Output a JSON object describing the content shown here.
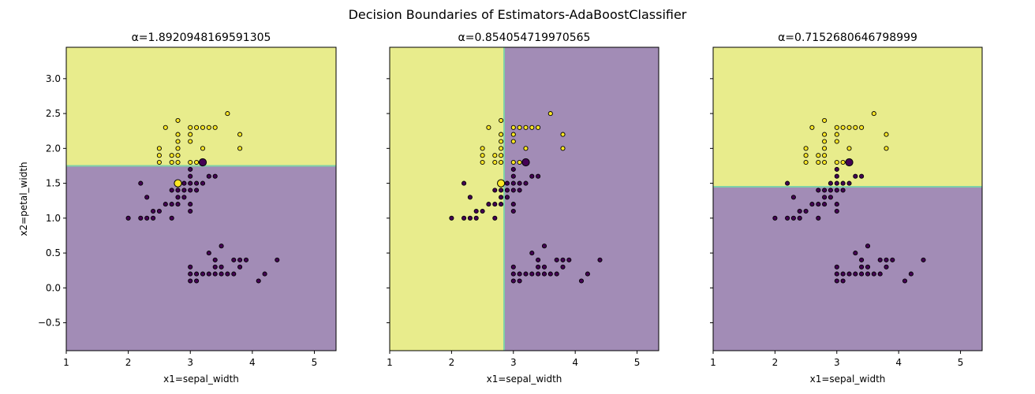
{
  "suptitle": "Decision Boundaries of Estimators-AdaBoostClassifier",
  "colors": {
    "class0_fill": "#a28cb6",
    "class1_fill": "#e8ec8c",
    "boundary": "#7ed0a8",
    "class0_point": "#440154",
    "class1_point": "#fde725",
    "point_edge": "#000000"
  },
  "chart_data": [
    {
      "type": "scatter",
      "title": "α=1.8920948169591305",
      "xlabel": "x1=sepal_width",
      "ylabel": "x2=petal_width",
      "xlim": [
        1.0,
        5.35
      ],
      "ylim": [
        -0.9,
        3.45
      ],
      "xticks": [
        1,
        2,
        3,
        4,
        5
      ],
      "yticks": [
        -0.5,
        0.0,
        0.5,
        1.0,
        1.5,
        2.0,
        2.5,
        3.0
      ],
      "ytick_labels": [
        "−0.5",
        "0.0",
        "0.5",
        "1.0",
        "1.5",
        "2.0",
        "2.5",
        "3.0"
      ],
      "show_ytick_labels": true,
      "split": {
        "axis": "y",
        "threshold": 1.75,
        "below": 0,
        "above": 1
      },
      "highlight": [
        [
          2.8,
          1.5,
          1
        ],
        [
          3.2,
          1.8,
          0
        ]
      ]
    },
    {
      "type": "scatter",
      "title": "α=0.854054719970565",
      "xlabel": "x1=sepal_width",
      "ylabel": "",
      "xlim": [
        1.0,
        5.35
      ],
      "ylim": [
        -0.9,
        3.45
      ],
      "xticks": [
        1,
        2,
        3,
        4,
        5
      ],
      "yticks": [
        -0.5,
        0.0,
        0.5,
        1.0,
        1.5,
        2.0,
        2.5,
        3.0
      ],
      "ytick_labels": [
        "−0.5",
        "0.0",
        "0.5",
        "1.0",
        "1.5",
        "2.0",
        "2.5",
        "3.0"
      ],
      "show_ytick_labels": false,
      "split": {
        "axis": "x",
        "threshold": 2.85,
        "below": 1,
        "above": 0
      },
      "highlight": [
        [
          2.8,
          1.5,
          1
        ],
        [
          3.2,
          1.8,
          0
        ]
      ]
    },
    {
      "type": "scatter",
      "title": "α=0.7152680646798999",
      "xlabel": "x1=sepal_width",
      "ylabel": "",
      "xlim": [
        1.0,
        5.35
      ],
      "ylim": [
        -0.9,
        3.45
      ],
      "xticks": [
        1,
        2,
        3,
        4,
        5
      ],
      "yticks": [
        -0.5,
        0.0,
        0.5,
        1.0,
        1.5,
        2.0,
        2.5,
        3.0
      ],
      "ytick_labels": [
        "−0.5",
        "0.0",
        "0.5",
        "1.0",
        "1.5",
        "2.0",
        "2.5",
        "3.0"
      ],
      "show_ytick_labels": false,
      "split": {
        "axis": "y",
        "threshold": 1.45,
        "below": 0,
        "above": 1
      },
      "highlight": [
        [
          3.2,
          1.8,
          0
        ]
      ]
    }
  ],
  "points": {
    "columns": [
      "sepal_width",
      "petal_width",
      "class"
    ],
    "rows": [
      [
        2.6,
        2.3,
        1
      ],
      [
        2.8,
        2.4,
        1
      ],
      [
        2.8,
        2.2,
        1
      ],
      [
        2.8,
        2.1,
        1
      ],
      [
        2.8,
        2.0,
        1
      ],
      [
        2.8,
        1.9,
        1
      ],
      [
        2.8,
        1.8,
        1
      ],
      [
        2.7,
        1.9,
        1
      ],
      [
        2.7,
        1.8,
        1
      ],
      [
        2.5,
        2.0,
        1
      ],
      [
        2.5,
        1.9,
        1
      ],
      [
        2.5,
        1.8,
        1
      ],
      [
        3.0,
        2.3,
        1
      ],
      [
        3.0,
        2.2,
        1
      ],
      [
        3.0,
        2.1,
        1
      ],
      [
        3.0,
        1.8,
        1
      ],
      [
        3.1,
        2.3,
        1
      ],
      [
        3.2,
        2.3,
        1
      ],
      [
        3.2,
        2.0,
        1
      ],
      [
        3.3,
        2.3,
        1
      ],
      [
        3.4,
        2.3,
        1
      ],
      [
        3.6,
        2.5,
        1
      ],
      [
        3.8,
        2.2,
        1
      ],
      [
        3.8,
        2.0,
        1
      ],
      [
        3.1,
        1.8,
        1
      ],
      [
        2.0,
        1.0,
        0
      ],
      [
        2.2,
        1.5,
        0
      ],
      [
        2.2,
        1.0,
        0
      ],
      [
        2.3,
        1.3,
        0
      ],
      [
        2.3,
        1.0,
        0
      ],
      [
        2.4,
        1.1,
        0
      ],
      [
        2.4,
        1.0,
        0
      ],
      [
        2.5,
        1.1,
        0
      ],
      [
        2.6,
        1.2,
        0
      ],
      [
        2.7,
        1.0,
        0
      ],
      [
        2.7,
        1.4,
        0
      ],
      [
        2.7,
        1.2,
        0
      ],
      [
        2.8,
        1.4,
        0
      ],
      [
        2.8,
        1.3,
        0
      ],
      [
        2.8,
        1.2,
        0
      ],
      [
        2.9,
        1.5,
        0
      ],
      [
        2.9,
        1.4,
        0
      ],
      [
        2.9,
        1.3,
        0
      ],
      [
        3.0,
        1.7,
        0
      ],
      [
        3.0,
        1.6,
        0
      ],
      [
        3.0,
        1.5,
        0
      ],
      [
        3.0,
        1.4,
        0
      ],
      [
        3.0,
        1.2,
        0
      ],
      [
        3.0,
        1.1,
        0
      ],
      [
        3.1,
        1.5,
        0
      ],
      [
        3.1,
        1.4,
        0
      ],
      [
        3.2,
        1.5,
        0
      ],
      [
        3.3,
        1.6,
        0
      ],
      [
        3.4,
        1.6,
        0
      ],
      [
        3.0,
        0.3,
        0
      ],
      [
        3.0,
        0.2,
        0
      ],
      [
        3.0,
        0.1,
        0
      ],
      [
        3.1,
        0.2,
        0
      ],
      [
        3.1,
        0.1,
        0
      ],
      [
        3.2,
        0.2,
        0
      ],
      [
        3.3,
        0.2,
        0
      ],
      [
        3.3,
        0.5,
        0
      ],
      [
        3.4,
        0.2,
        0
      ],
      [
        3.4,
        0.4,
        0
      ],
      [
        3.4,
        0.3,
        0
      ],
      [
        3.5,
        0.2,
        0
      ],
      [
        3.5,
        0.3,
        0
      ],
      [
        3.5,
        0.6,
        0
      ],
      [
        3.6,
        0.2,
        0
      ],
      [
        3.7,
        0.2,
        0
      ],
      [
        3.7,
        0.4,
        0
      ],
      [
        3.8,
        0.3,
        0
      ],
      [
        3.8,
        0.4,
        0
      ],
      [
        3.9,
        0.4,
        0
      ],
      [
        4.1,
        0.1,
        0
      ],
      [
        4.2,
        0.2,
        0
      ],
      [
        4.4,
        0.4,
        0
      ]
    ]
  }
}
